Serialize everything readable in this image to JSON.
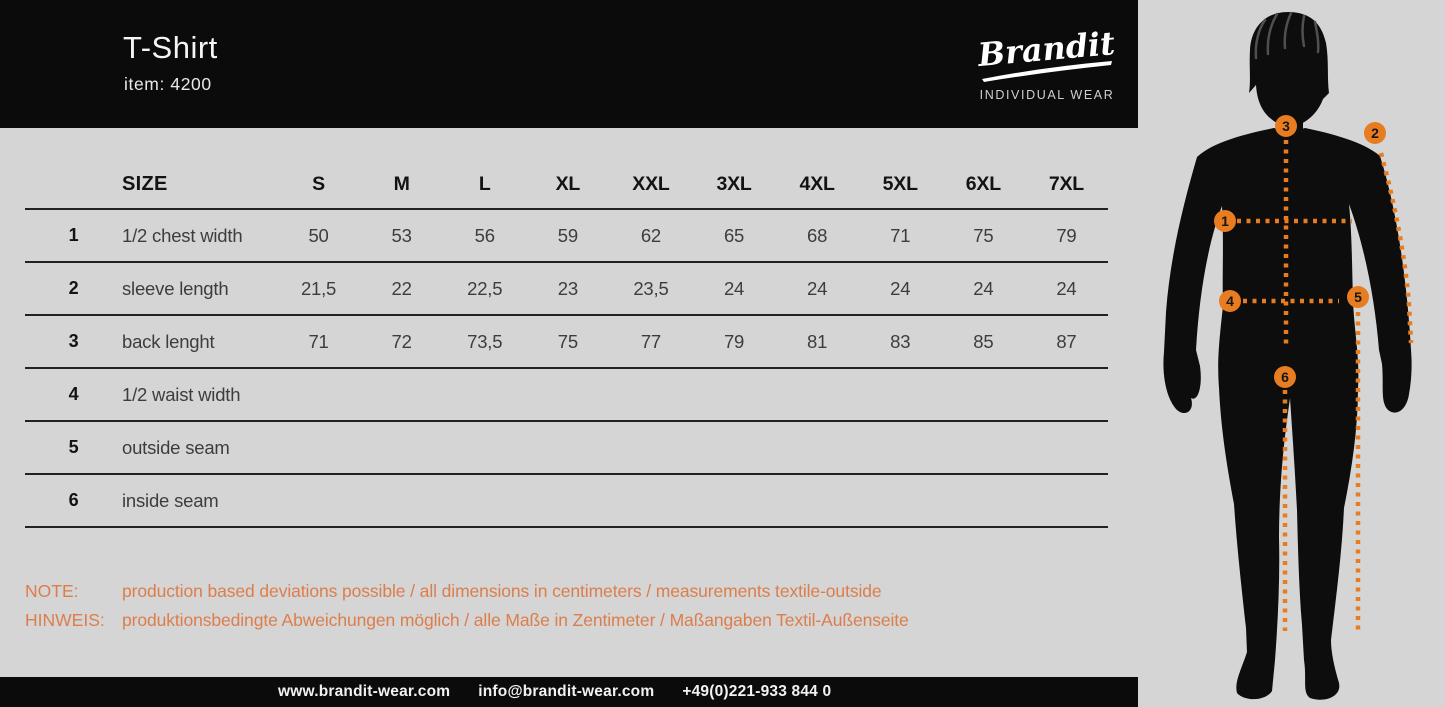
{
  "header": {
    "title": "T-Shirt",
    "item_label": "item: 4200",
    "brand": {
      "name": "Brandit",
      "tagline": "INDIVIDUAL WEAR"
    }
  },
  "table": {
    "size_label": "SIZE",
    "columns": [
      "S",
      "M",
      "L",
      "XL",
      "XXL",
      "3XL",
      "4XL",
      "5XL",
      "6XL",
      "7XL"
    ],
    "rows": [
      {
        "num": "1",
        "label": "1/2 chest width",
        "values": [
          "50",
          "53",
          "56",
          "59",
          "62",
          "65",
          "68",
          "71",
          "75",
          "79"
        ]
      },
      {
        "num": "2",
        "label": "sleeve length",
        "values": [
          "21,5",
          "22",
          "22,5",
          "23",
          "23,5",
          "24",
          "24",
          "24",
          "24",
          "24"
        ]
      },
      {
        "num": "3",
        "label": "back lenght",
        "values": [
          "71",
          "72",
          "73,5",
          "75",
          "77",
          "79",
          "81",
          "83",
          "85",
          "87"
        ]
      },
      {
        "num": "4",
        "label": "1/2 waist width",
        "values": [
          "",
          "",
          "",
          "",
          "",
          "",
          "",
          "",
          "",
          ""
        ]
      },
      {
        "num": "5",
        "label": "outside seam",
        "values": [
          "",
          "",
          "",
          "",
          "",
          "",
          "",
          "",
          "",
          ""
        ]
      },
      {
        "num": "6",
        "label": "inside seam",
        "values": [
          "",
          "",
          "",
          "",
          "",
          "",
          "",
          "",
          "",
          ""
        ]
      }
    ]
  },
  "notes": [
    {
      "label": "NOTE:",
      "text": "production based deviations possible / all dimensions in centimeters / measurements textile-outside"
    },
    {
      "label": "HINWEIS:",
      "text": "produktionsbedingte Abweichungen möglich / alle Maße in Zentimeter / Maßangaben Textil-Außenseite"
    }
  ],
  "footer": {
    "website": "www.brandit-wear.com",
    "email": "info@brandit-wear.com",
    "phone": "+49(0)221-933 844 0"
  },
  "figure": {
    "markers": [
      "1",
      "2",
      "3",
      "4",
      "5",
      "6"
    ]
  },
  "colors": {
    "background": "#d5d5d5",
    "panel_black": "#0b0b0b",
    "accent_orange": "#e87c20",
    "note_orange": "#dc7e4c",
    "table_line": "#222222"
  }
}
